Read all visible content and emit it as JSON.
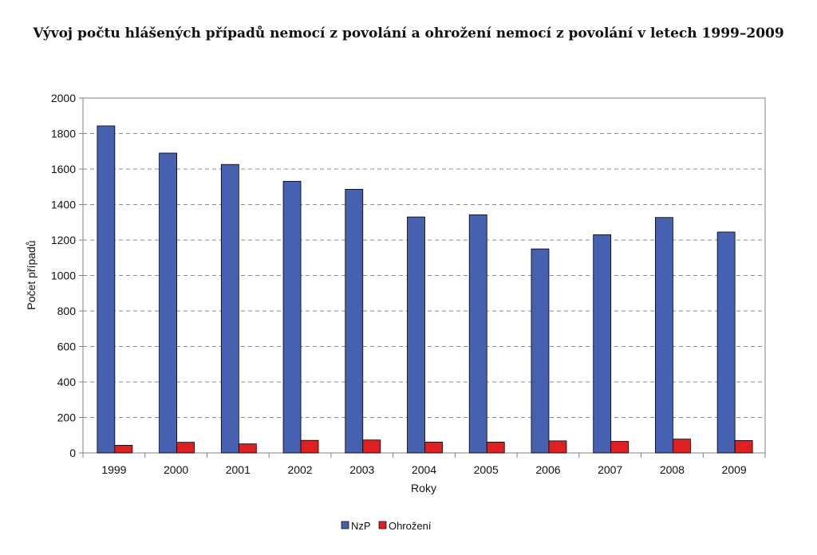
{
  "chart_data": {
    "type": "bar",
    "title": "Vývoj počtu hlášených případů nemocí z povolání a ohrožení nemocí z povolání v letech 1999–2009",
    "xlabel": "Roky",
    "ylabel": "Počet případů",
    "ylim": [
      0,
      2000
    ],
    "yticks": [
      0,
      200,
      400,
      600,
      800,
      1000,
      1200,
      1400,
      1600,
      1800,
      2000
    ],
    "grid": true,
    "legend_position": "bottom",
    "categories": [
      "1999",
      "2000",
      "2001",
      "2002",
      "2003",
      "2004",
      "2005",
      "2006",
      "2007",
      "2008",
      "2009"
    ],
    "series": [
      {
        "name": "NzP",
        "color": "#4661b0",
        "values": [
          1843,
          1690,
          1626,
          1531,
          1486,
          1330,
          1342,
          1150,
          1230,
          1327,
          1245
        ]
      },
      {
        "name": "Ohrožení",
        "color": "#e02020",
        "values": [
          43,
          60,
          51,
          71,
          73,
          61,
          61,
          68,
          65,
          78,
          70
        ]
      }
    ]
  }
}
